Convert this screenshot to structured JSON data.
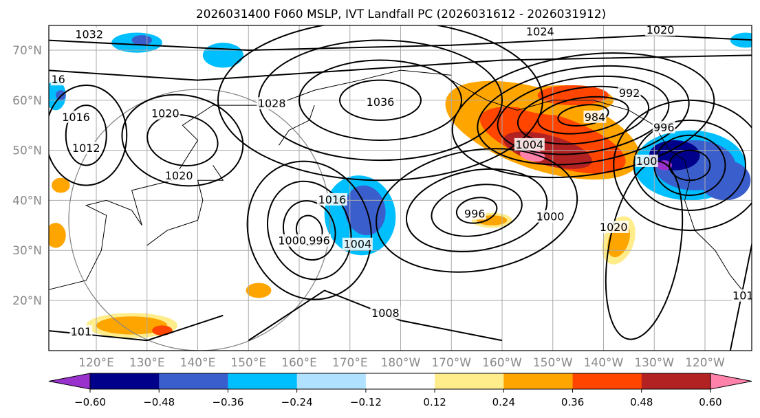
{
  "chart_data": {
    "type": "map",
    "title": "2026031400 F060 MSLP, IVT Landfall PC (2026031612 - 2026031912)",
    "lon_range": [
      110.6,
      249.2
    ],
    "lat_range": [
      10,
      75
    ],
    "x_ticks": [
      {
        "lon": 120,
        "label": "120°E"
      },
      {
        "lon": 130,
        "label": "130°E"
      },
      {
        "lon": 140,
        "label": "140°E"
      },
      {
        "lon": 150,
        "label": "150°E"
      },
      {
        "lon": 160,
        "label": "160°E"
      },
      {
        "lon": 170,
        "label": "170°E"
      },
      {
        "lon": 180,
        "label": "180°W"
      },
      {
        "lon": 190,
        "label": "170°W"
      },
      {
        "lon": 200,
        "label": "160°W"
      },
      {
        "lon": 210,
        "label": "150°W"
      },
      {
        "lon": 220,
        "label": "140°W"
      },
      {
        "lon": 230,
        "label": "130°W"
      },
      {
        "lon": 240,
        "label": "120°W"
      }
    ],
    "y_ticks": [
      {
        "lat": 70,
        "label": "70°N"
      },
      {
        "lat": 60,
        "label": "60°N"
      },
      {
        "lat": 50,
        "label": "50°N"
      },
      {
        "lat": 40,
        "label": "40°N"
      },
      {
        "lat": 30,
        "label": "30°N"
      },
      {
        "lat": 20,
        "label": "20°N"
      }
    ],
    "grid": true,
    "colorbar": {
      "orientation": "horizontal",
      "location": "bottom",
      "extend": "both",
      "colors": [
        "#9932cc",
        "#00008b",
        "#3a5fcd",
        "#00bfff",
        "#b0e2ff",
        "#ffffff",
        "#ffec8b",
        "#ffa500",
        "#ff4500",
        "#b22222",
        "#ff82ab"
      ],
      "ticks": [
        "−0.60",
        "−0.48",
        "−0.36",
        "−0.24",
        "−0.12",
        "0.12",
        "0.24",
        "0.36",
        "0.48",
        "0.60"
      ]
    },
    "contour_labels": [
      {
        "text": "1032",
        "lon": 118.6,
        "lat": 73.2
      },
      {
        "text": "1024",
        "lon": 207.5,
        "lat": 73.8
      },
      {
        "text": "1020",
        "lon": 231.2,
        "lat": 74.1
      },
      {
        "text": "16",
        "lon": 112.5,
        "lat": 64.2
      },
      {
        "text": "1036",
        "lon": 176,
        "lat": 59.7
      },
      {
        "text": "1028",
        "lon": 154.6,
        "lat": 59.4
      },
      {
        "text": "1020",
        "lon": 133.6,
        "lat": 57.4
      },
      {
        "text": "1016",
        "lon": 116,
        "lat": 56.7
      },
      {
        "text": "1012",
        "lon": 118,
        "lat": 50.5
      },
      {
        "text": "984",
        "lon": 218.3,
        "lat": 56.7
      },
      {
        "text": "992",
        "lon": 225.1,
        "lat": 61.5
      },
      {
        "text": "1004",
        "lon": 205.4,
        "lat": 51.2
      },
      {
        "text": "996",
        "lon": 231.9,
        "lat": 54.6
      },
      {
        "text": "1020",
        "lon": 136.3,
        "lat": 45
      },
      {
        "text": "1016",
        "lon": 166.5,
        "lat": 40.2
      },
      {
        "text": "1000",
        "lon": 158.6,
        "lat": 32
      },
      {
        "text": "996",
        "lon": 164,
        "lat": 32
      },
      {
        "text": "1004",
        "lon": 171.5,
        "lat": 31.3
      },
      {
        "text": "996",
        "lon": 194.6,
        "lat": 37.4
      },
      {
        "text": "1000",
        "lon": 209.5,
        "lat": 36.8
      },
      {
        "text": "1020",
        "lon": 222,
        "lat": 34.7
      },
      {
        "text": "1008",
        "lon": 177,
        "lat": 17.5
      },
      {
        "text": "101",
        "lon": 117,
        "lat": 13.8
      },
      {
        "text": "100",
        "lon": 228.5,
        "lat": 47.9
      },
      {
        "text": "101",
        "lon": 247.5,
        "lat": 21
      }
    ]
  }
}
